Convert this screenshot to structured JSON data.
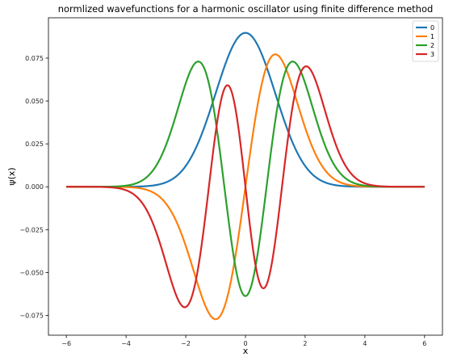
{
  "chart_data": {
    "type": "line",
    "title": "normlized wavefunctions for a harmonic oscillator using finite difference method",
    "xlabel": "x",
    "ylabel": "ψ(x)",
    "xlim": [
      -6.6,
      6.6
    ],
    "ylim": [
      -0.0865,
      0.0985
    ],
    "xticks": [
      -6,
      -4,
      -2,
      0,
      2,
      4,
      6
    ],
    "xtick_labels": [
      "−6",
      "−4",
      "−2",
      "0",
      "2",
      "4",
      "6"
    ],
    "yticks": [
      -0.075,
      -0.05,
      -0.025,
      0.0,
      0.025,
      0.05,
      0.075
    ],
    "ytick_labels": [
      "−0.075",
      "−0.050",
      "−0.025",
      "0.000",
      "0.025",
      "0.050",
      "0.075"
    ],
    "grid": false,
    "legend_position": "top-right",
    "x_range": [
      -6,
      6
    ],
    "series": [
      {
        "name": "0",
        "color": "#1f77b4",
        "n": 0,
        "peak": 0.0897,
        "scale": 1.0
      },
      {
        "name": "1",
        "color": "#ff7f0e",
        "n": 1,
        "peak": 0.0772,
        "scale": 1.0
      },
      {
        "name": "2",
        "color": "#2ca02c",
        "n": 2,
        "peak": 0.073,
        "scale": 1.0
      },
      {
        "name": "3",
        "color": "#d62728",
        "n": 3,
        "peak": 0.0702,
        "scale": 1.0
      }
    ]
  }
}
